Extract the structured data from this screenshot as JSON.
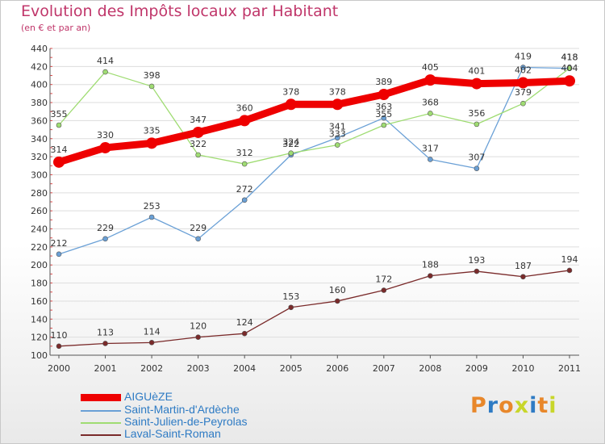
{
  "header": {
    "title": "Evolution des Impôts locaux par Habitant",
    "subtitle": "(en € et par an)"
  },
  "brand": {
    "logo_text": "Proxiti",
    "letter_colors": [
      "#e8872a",
      "#2e7bc4",
      "#e8872a",
      "#c8d62a",
      "#2e7bc4",
      "#e8872a",
      "#c8d62a"
    ]
  },
  "chart_data": {
    "type": "line",
    "title": "Evolution des Impôts locaux par Habitant",
    "subtitle": "(en € et par an)",
    "xlabel": "",
    "ylabel": "",
    "categories": [
      "2000",
      "2001",
      "2002",
      "2003",
      "2004",
      "2005",
      "2006",
      "2007",
      "2008",
      "2009",
      "2010",
      "2011"
    ],
    "ylim": [
      100,
      440
    ],
    "yticks": [
      100,
      120,
      140,
      160,
      180,
      200,
      220,
      240,
      260,
      280,
      300,
      320,
      340,
      360,
      380,
      400,
      420,
      440
    ],
    "grid": "horizontal",
    "legend_position": "bottom-left",
    "series": [
      {
        "name": "AIGUèZE",
        "color": "#ee0000",
        "values": [
          314,
          330,
          335,
          347,
          360,
          378,
          378,
          389,
          405,
          401,
          402,
          404
        ],
        "labels": [
          "314",
          "330",
          "335",
          "347",
          "360",
          "378",
          "378",
          "389",
          "405",
          "401",
          "402",
          "404"
        ]
      },
      {
        "name": "Saint-Martin-d'Ardèche",
        "color": "#6aa0d6",
        "values": [
          212,
          229,
          253,
          229,
          272,
          322,
          341,
          363,
          317,
          307,
          419,
          418
        ],
        "labels": [
          "212",
          "229",
          "253",
          "229",
          "272",
          "322",
          "341",
          "363",
          "317",
          "307",
          "419",
          "418"
        ]
      },
      {
        "name": "Saint-Julien-de-Peyrolas",
        "color": "#9fdc72",
        "values": [
          355,
          414,
          398,
          322,
          312,
          324,
          333,
          355,
          368,
          356,
          379,
          418
        ],
        "labels": [
          "355",
          "414",
          "398",
          "322",
          "312",
          "324",
          "333",
          "355",
          "368",
          "356",
          "379",
          "418"
        ]
      },
      {
        "name": "Laval-Saint-Roman",
        "color": "#7a2a2a",
        "values": [
          110,
          113,
          114,
          120,
          124,
          153,
          160,
          172,
          188,
          193,
          187,
          194
        ],
        "labels": [
          "110",
          "113",
          "114",
          "120",
          "124",
          "153",
          "160",
          "172",
          "188",
          "193",
          "187",
          "194"
        ]
      }
    ]
  }
}
